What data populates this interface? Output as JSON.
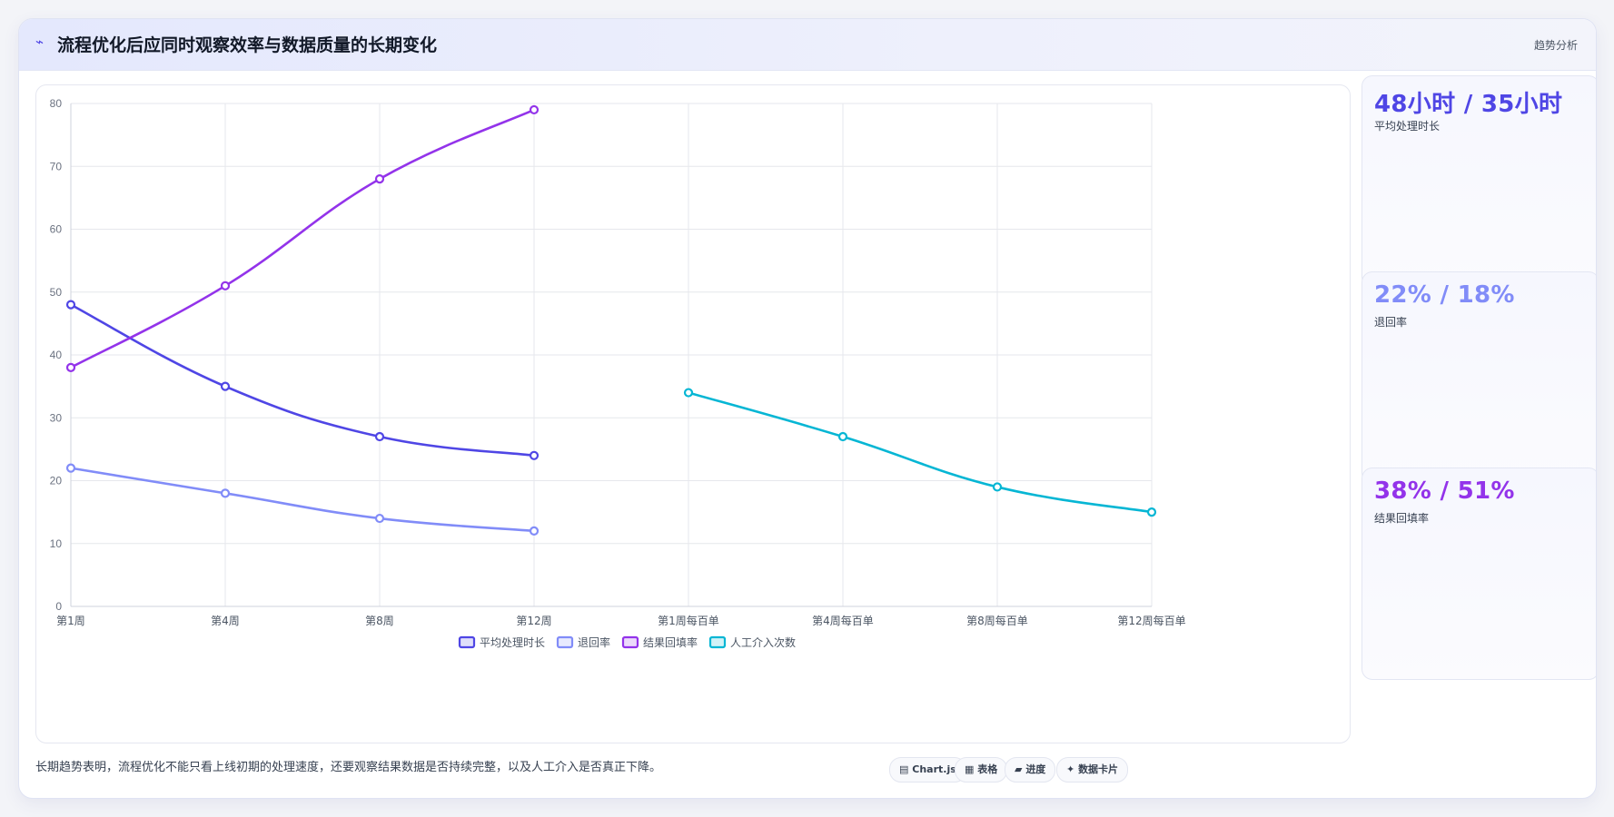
{
  "header": {
    "icon": "pulse-icon",
    "title": "流程优化后应同时观察效率与数据质量的长期变化",
    "tag": "趋势分析"
  },
  "stats": [
    {
      "value": "48小时 / 35小时",
      "label": "平均处理时长",
      "color": "#4f46e5"
    },
    {
      "value": "22% / 18%",
      "label": "退回率",
      "color": "#818cf8"
    },
    {
      "value": "38% / 51%",
      "label": "结果回填率",
      "color": "#9333ea"
    }
  ],
  "footnote": "长期趋势表明，流程优化不能只看上线初期的处理速度，还要观察结果数据是否持续完整，以及人工介入是否真正下降。",
  "chips": [
    {
      "icon": "chart-icon",
      "glyph": "▦",
      "label": "Chart.js"
    },
    {
      "icon": "table-icon",
      "glyph": "▦",
      "label": "表格"
    },
    {
      "icon": "progress-icon",
      "glyph": "▰",
      "label": "进度"
    },
    {
      "icon": "card-icon",
      "glyph": "✦",
      "label": "数据卡片"
    }
  ],
  "chart_data": {
    "type": "line",
    "categories": [
      "第1周",
      "第4周",
      "第8周",
      "第12周",
      "第1周每百单",
      "第4周每百单",
      "第8周每百单",
      "第12周每百单"
    ],
    "ylim": [
      0,
      80
    ],
    "yticks": [
      0,
      10,
      20,
      30,
      40,
      50,
      60,
      70,
      80
    ],
    "grid": true,
    "legend_position": "bottom",
    "series": [
      {
        "name": "平均处理时长",
        "color": "#4f46e5",
        "values": [
          48,
          35,
          27,
          24,
          null,
          null,
          null,
          null
        ]
      },
      {
        "name": "退回率",
        "color": "#818cf8",
        "values": [
          22,
          18,
          14,
          12,
          null,
          null,
          null,
          null
        ]
      },
      {
        "name": "结果回填率",
        "color": "#9333ea",
        "values": [
          38,
          51,
          68,
          79,
          null,
          null,
          null,
          null
        ]
      },
      {
        "name": "人工介入次数",
        "color": "#06b6d4",
        "values": [
          null,
          null,
          null,
          null,
          34,
          27,
          19,
          15
        ]
      }
    ]
  }
}
